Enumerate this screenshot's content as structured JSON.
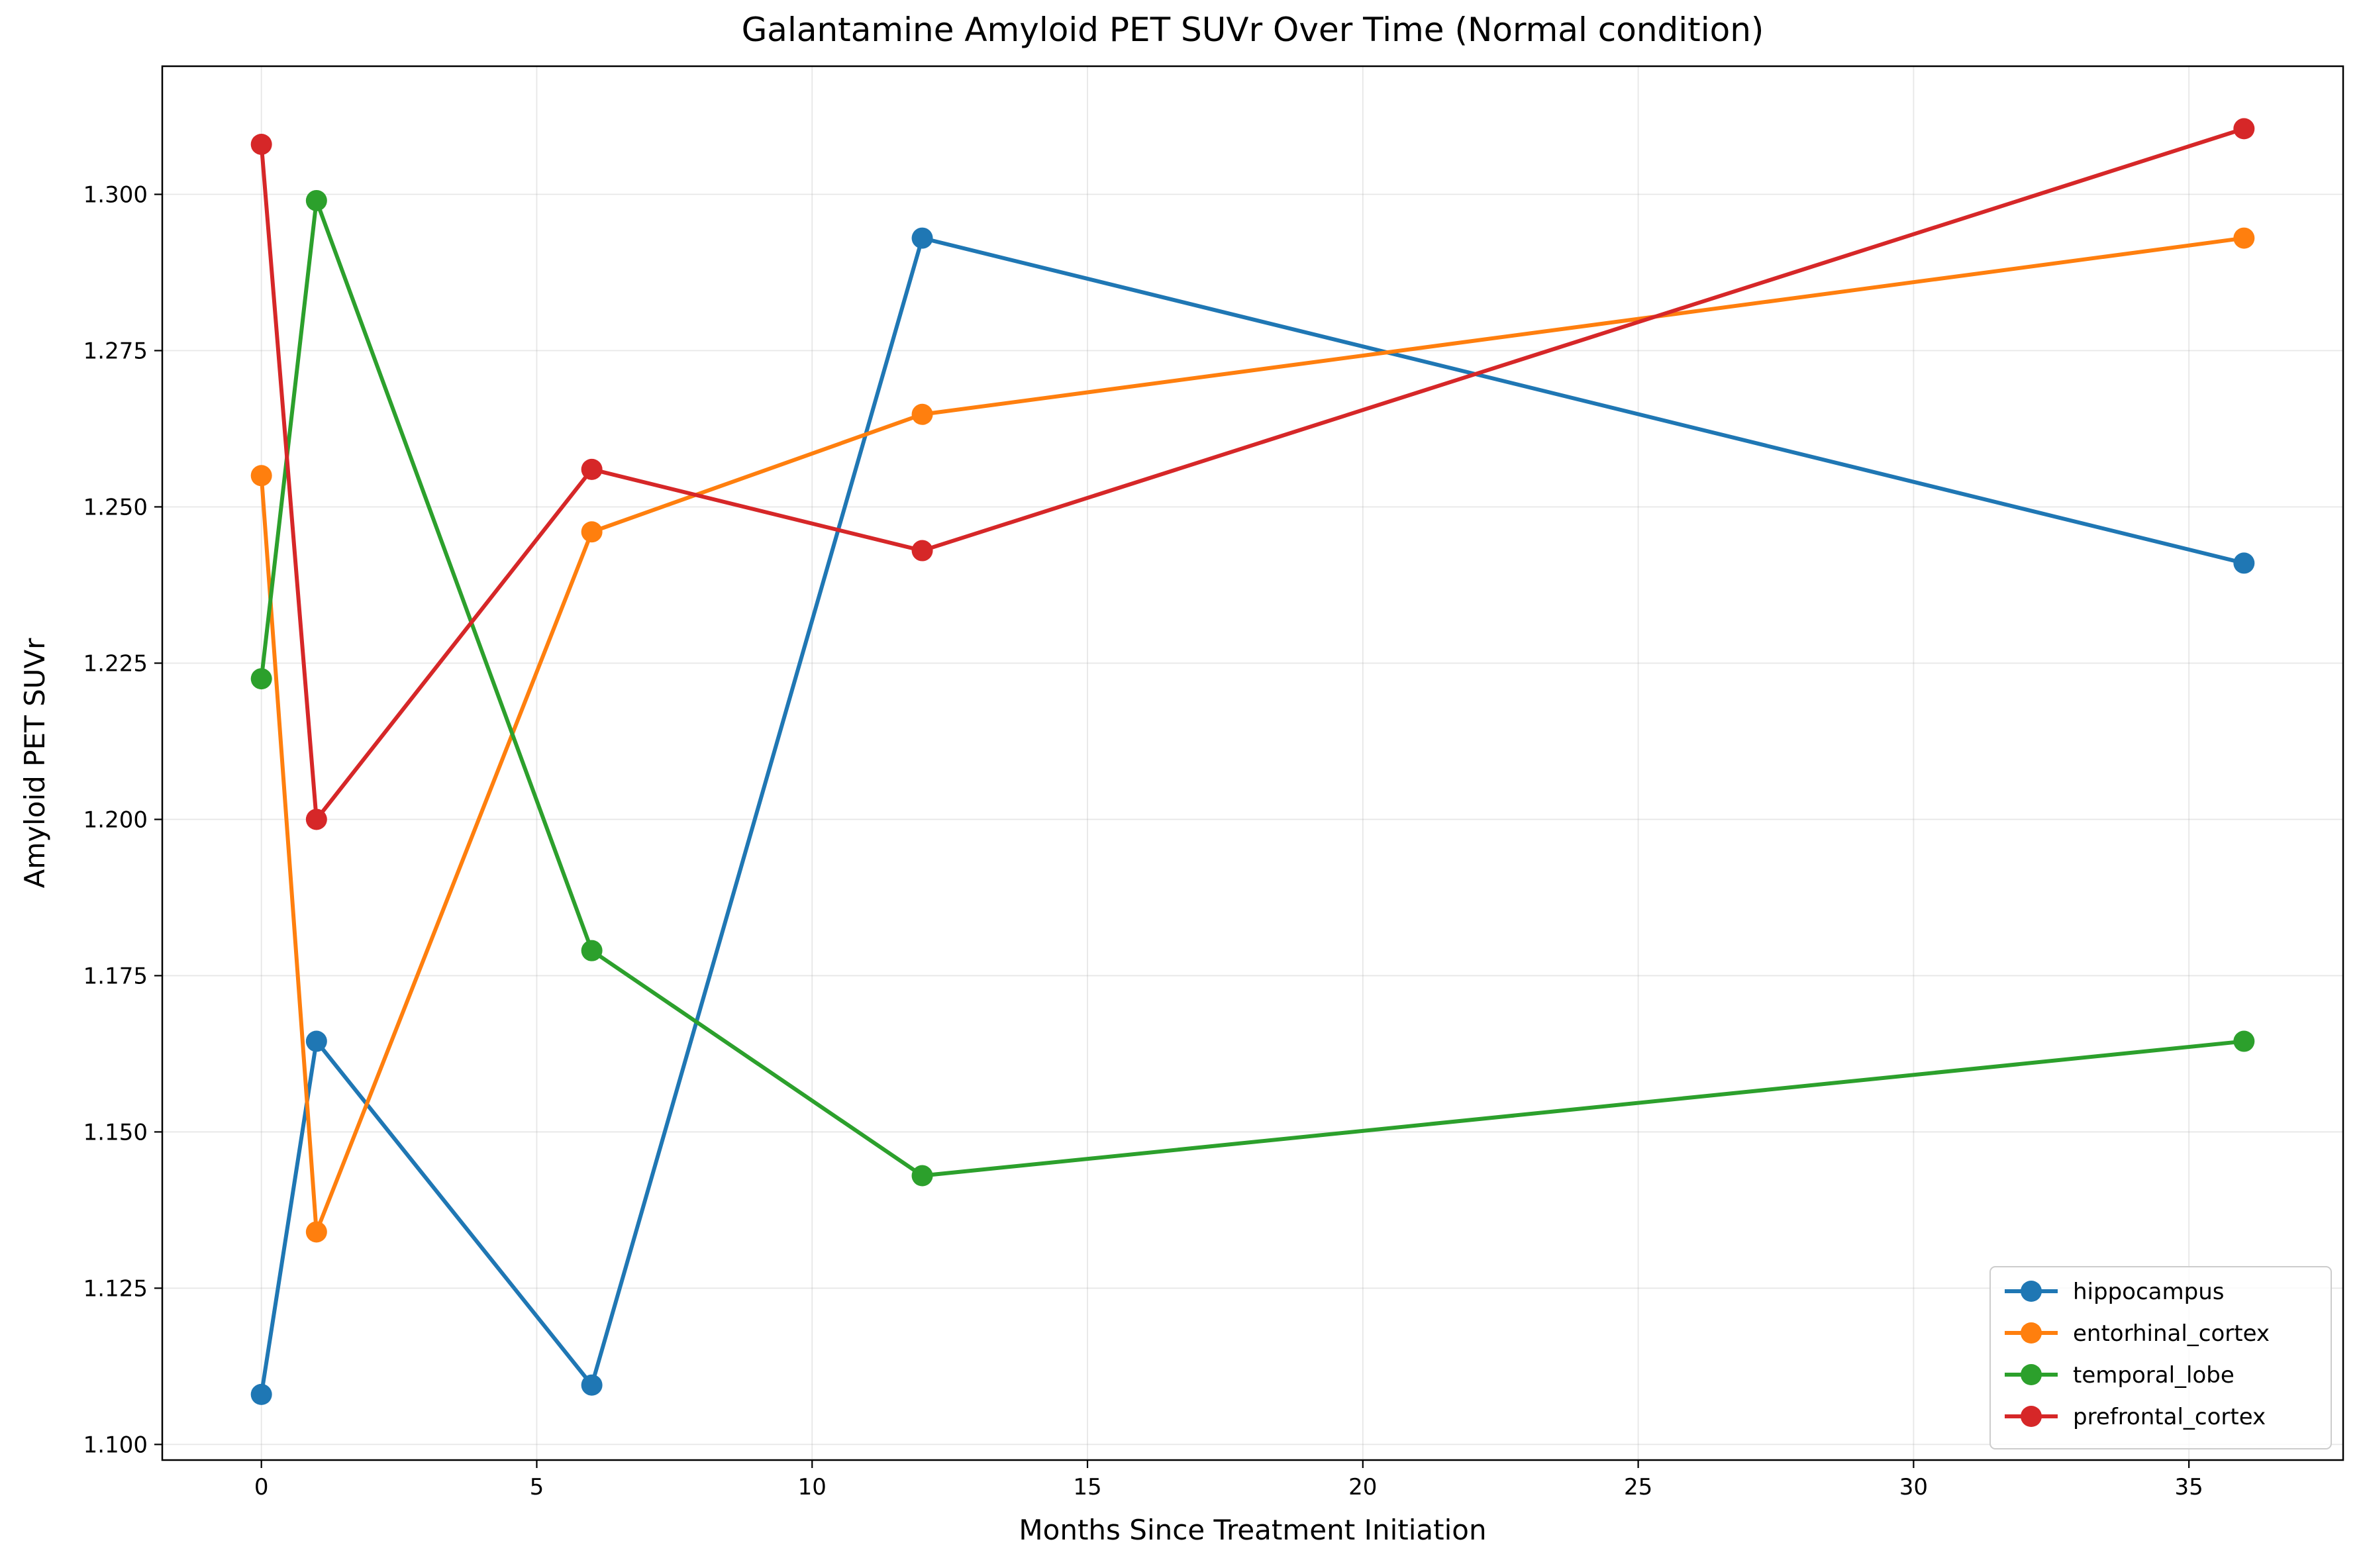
{
  "chart_data": {
    "type": "line",
    "title": "Galantamine Amyloid PET SUVr Over Time (Normal condition)",
    "xlabel": "Months Since Treatment Initiation",
    "ylabel": "Amyloid PET SUVr",
    "xlim": [
      -1.8,
      37.8
    ],
    "ylim": [
      1.0975,
      1.3205
    ],
    "xticks": [
      0,
      5,
      10,
      15,
      20,
      25,
      30,
      35
    ],
    "yticks": [
      1.1,
      1.125,
      1.15,
      1.175,
      1.2,
      1.225,
      1.25,
      1.275,
      1.3
    ],
    "grid": true,
    "legend_position": "lower-right",
    "x": [
      0,
      1,
      6,
      12,
      36
    ],
    "series": [
      {
        "name": "hippocampus",
        "color": "#1f77b4",
        "values": [
          1.108,
          1.1645,
          1.1095,
          1.293,
          1.241
        ]
      },
      {
        "name": "entorhinal_cortex",
        "color": "#ff7f0e",
        "values": [
          1.255,
          1.134,
          1.246,
          1.2648,
          1.293
        ]
      },
      {
        "name": "temporal_lobe",
        "color": "#2ca02c",
        "values": [
          1.2225,
          1.299,
          1.179,
          1.143,
          1.1645
        ]
      },
      {
        "name": "prefrontal_cortex",
        "color": "#d62728",
        "values": [
          1.308,
          1.2,
          1.256,
          1.243,
          1.3105
        ]
      }
    ]
  }
}
